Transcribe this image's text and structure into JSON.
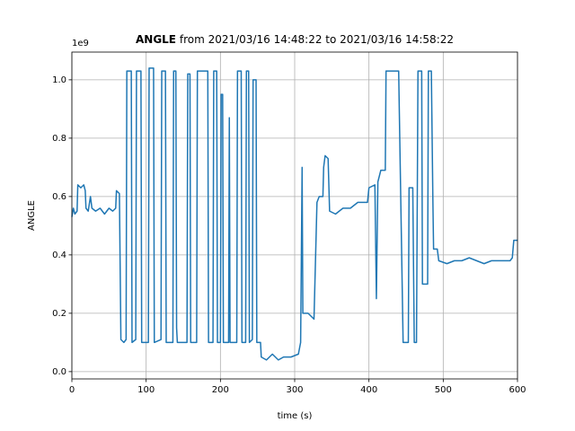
{
  "chart_data": {
    "type": "line",
    "title_bold": "ANGLE",
    "title_rest": "from 2021/03/16 14:48:22 to 2021/03/16 14:58:22",
    "x_label": "time (s)",
    "y_label": "ANGLE",
    "y_offset_label": "1e9",
    "xlim": [
      0,
      600
    ],
    "xticks": [
      0,
      100,
      200,
      300,
      400,
      500,
      600
    ],
    "ylim": [
      -0.025,
      1.095
    ],
    "yticks": [
      {
        "value": 0,
        "label": "0.0"
      },
      0.2,
      0.4,
      0.6,
      0.8,
      {
        "value": 1,
        "label": "1.0"
      }
    ],
    "grid": true,
    "series": [
      {
        "name": "ANGLE",
        "color": "#1f77b4",
        "x": [
          0,
          2,
          4,
          7,
          8,
          12,
          16,
          18,
          19,
          22,
          25,
          27,
          32,
          38,
          44,
          50,
          55,
          59,
          60,
          64,
          66,
          70,
          73,
          74,
          80,
          81,
          86,
          87,
          93,
          94,
          103,
          104,
          110,
          111,
          120,
          121,
          126,
          127,
          136,
          137,
          140,
          141,
          142,
          155,
          156,
          159,
          160,
          168,
          169,
          183,
          184,
          190,
          191,
          195,
          196,
          200,
          201,
          203,
          204,
          211,
          212,
          213,
          222,
          223,
          228,
          229,
          234,
          235,
          238,
          239,
          243,
          244,
          248,
          249,
          254,
          255,
          262,
          270,
          278,
          285,
          295,
          305,
          308,
          310,
          311,
          318,
          326,
          330,
          333,
          338,
          339,
          341,
          345,
          347,
          355,
          365,
          375,
          385,
          398,
          400,
          408,
          410,
          412,
          416,
          422,
          423,
          440,
          446,
          453,
          454,
          459,
          461,
          464,
          466,
          471,
          472,
          479,
          480,
          484,
          486,
          487,
          492,
          494,
          505,
          515,
          525,
          535,
          545,
          555,
          565,
          575,
          590,
          593,
          595,
          600
        ],
        "values": [
          0.53,
          0.56,
          0.54,
          0.55,
          0.64,
          0.63,
          0.64,
          0.62,
          0.56,
          0.55,
          0.6,
          0.56,
          0.55,
          0.56,
          0.54,
          0.56,
          0.55,
          0.56,
          0.62,
          0.61,
          0.11,
          0.1,
          0.11,
          1.03,
          1.03,
          0.1,
          0.11,
          1.03,
          1.03,
          0.1,
          0.1,
          1.04,
          1.04,
          0.1,
          0.11,
          1.03,
          1.03,
          0.1,
          0.1,
          1.03,
          1.03,
          0.15,
          0.1,
          0.1,
          1.02,
          1.02,
          0.1,
          0.1,
          1.03,
          1.03,
          0.1,
          0.1,
          1.03,
          1.03,
          0.1,
          0.1,
          0.95,
          0.95,
          0.1,
          0.1,
          0.87,
          0.1,
          0.1,
          1.03,
          1.03,
          0.1,
          0.1,
          1.03,
          1.03,
          0.1,
          0.11,
          1.0,
          1.0,
          0.1,
          0.1,
          0.05,
          0.04,
          0.06,
          0.04,
          0.05,
          0.05,
          0.06,
          0.1,
          0.7,
          0.2,
          0.2,
          0.18,
          0.58,
          0.6,
          0.6,
          0.7,
          0.74,
          0.73,
          0.55,
          0.54,
          0.56,
          0.56,
          0.58,
          0.58,
          0.63,
          0.64,
          0.25,
          0.65,
          0.69,
          0.69,
          1.03,
          1.03,
          0.1,
          0.1,
          0.63,
          0.63,
          0.1,
          0.1,
          1.03,
          1.03,
          0.3,
          0.3,
          1.03,
          1.03,
          0.6,
          0.42,
          0.42,
          0.38,
          0.37,
          0.38,
          0.38,
          0.39,
          0.38,
          0.37,
          0.38,
          0.38,
          0.38,
          0.39,
          0.45,
          0.45
        ]
      }
    ]
  }
}
